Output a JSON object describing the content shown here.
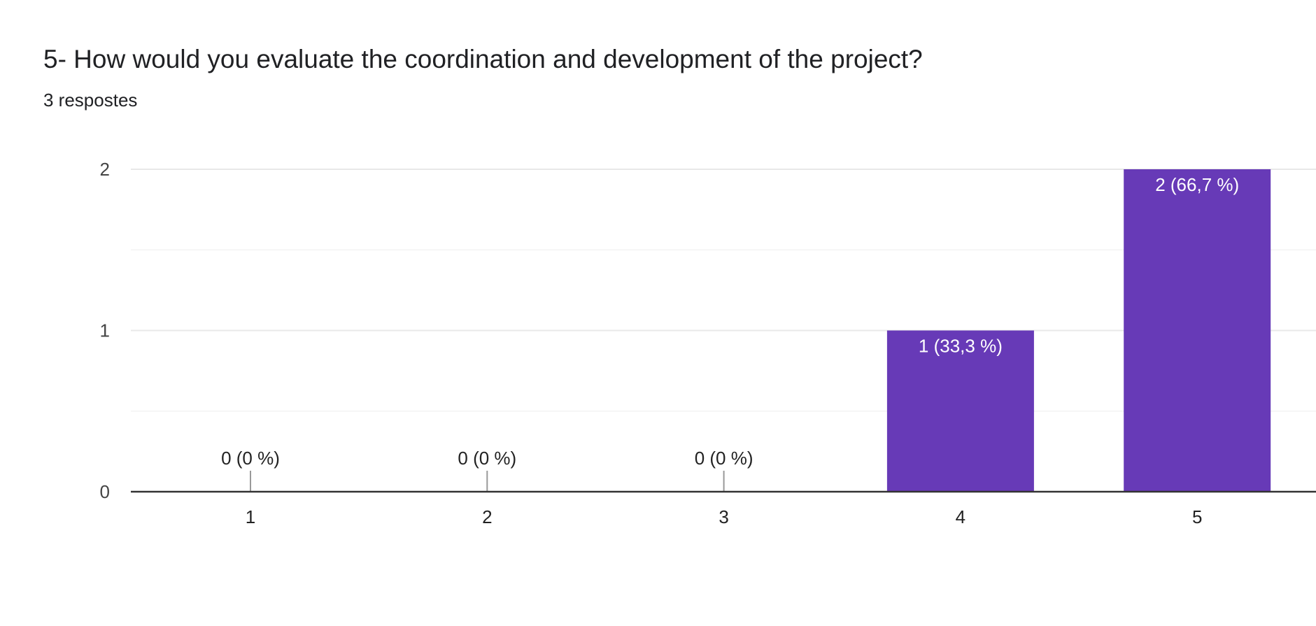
{
  "header": {
    "title": "5- How would you evaluate the coordination and development of the project?",
    "subtitle": "3 respostes"
  },
  "chart_data": {
    "type": "bar",
    "title": "5- How would you evaluate the coordination and development of the project?",
    "xlabel": "",
    "ylabel": "",
    "categories": [
      "1",
      "2",
      "3",
      "4",
      "5"
    ],
    "values": [
      0,
      0,
      0,
      1,
      2
    ],
    "data_labels": [
      "0 (0 %)",
      "0 (0 %)",
      "0 (0 %)",
      "1 (33,3 %)",
      "2 (66,7 %)"
    ],
    "ylim": [
      0,
      2
    ],
    "yticks": [
      "0",
      "1",
      "2"
    ],
    "grid": true,
    "bar_color": "#673ab7"
  }
}
